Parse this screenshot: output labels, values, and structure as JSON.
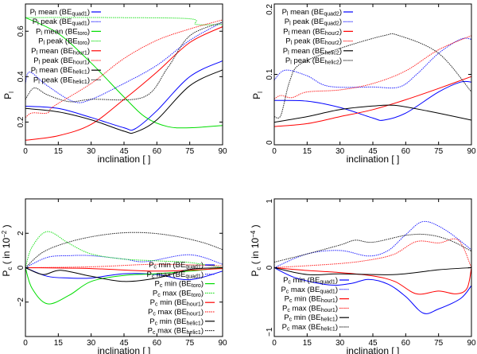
{
  "chart_data": [
    {
      "type": "line",
      "xlabel": "inclination [ ]",
      "ylabel": {
        "sym": "P",
        "sub": "l",
        "rest": ""
      },
      "xlim": [
        0,
        90
      ],
      "ylim": [
        0.1,
        0.72
      ],
      "xticks": [
        0,
        15,
        30,
        45,
        60,
        75,
        90
      ],
      "yticks": [
        0.2,
        0.4,
        0.6
      ],
      "ytick_labels": [
        "0.2",
        "0.4",
        "0.6"
      ],
      "legend_position": "top-left",
      "series": [
        {
          "name": "Pl mean (BEquad1)",
          "sym_sub": "l",
          "stat": "mean",
          "be_sub": "quad1",
          "color": "#0000ff",
          "dashed": false,
          "x": [
            0,
            15,
            30,
            45,
            50,
            60,
            75,
            90
          ],
          "y": [
            0.27,
            0.26,
            0.22,
            0.175,
            0.17,
            0.25,
            0.4,
            0.47
          ]
        },
        {
          "name": "Pl peak (BEquad1)",
          "sym_sub": "l",
          "stat": "peak",
          "be_sub": "quad1",
          "color": "#0000ff",
          "dashed": true,
          "x": [
            0,
            2,
            10,
            22,
            30,
            45,
            60,
            75,
            90
          ],
          "y": [
            0.37,
            0.42,
            0.36,
            0.29,
            0.3,
            0.37,
            0.45,
            0.56,
            0.64
          ]
        },
        {
          "name": "Pl mean (BEtoro)",
          "sym_sub": "l",
          "stat": "mean",
          "be_sub": "toro",
          "color": "#00dd00",
          "dashed": false,
          "x": [
            0,
            15,
            30,
            45,
            55,
            65,
            75,
            90
          ],
          "y": [
            0.66,
            0.59,
            0.46,
            0.31,
            0.22,
            0.18,
            0.175,
            0.185
          ]
        },
        {
          "name": "Pl peak (BEtoro)",
          "sym_sub": "l",
          "stat": "peak",
          "be_sub": "toro",
          "color": "#00dd00",
          "dashed": true,
          "x": [
            0,
            40,
            75,
            78,
            90
          ],
          "y": [
            0.66,
            0.66,
            0.655,
            0.63,
            0.63
          ]
        },
        {
          "name": "Pl mean (BEhour1)",
          "sym_sub": "l",
          "stat": "mean",
          "be_sub": "hour1",
          "color": "#ff0000",
          "dashed": false,
          "x": [
            0,
            15,
            30,
            45,
            60,
            75,
            90
          ],
          "y": [
            0.12,
            0.14,
            0.19,
            0.3,
            0.42,
            0.55,
            0.62
          ]
        },
        {
          "name": "Pl peak (BEhour1)",
          "sym_sub": "l",
          "stat": "peak",
          "be_sub": "hour1",
          "color": "#ff0000",
          "dashed": true,
          "x": [
            0,
            3,
            10,
            13,
            30,
            45,
            60,
            75,
            90
          ],
          "y": [
            0.22,
            0.24,
            0.24,
            0.27,
            0.37,
            0.48,
            0.56,
            0.61,
            0.65
          ]
        },
        {
          "name": "Pl mean (BEhelic1)",
          "sym_sub": "l",
          "stat": "mean",
          "be_sub": "helic1",
          "color": "#000000",
          "dashed": false,
          "x": [
            0,
            15,
            30,
            45,
            50,
            60,
            75,
            90
          ],
          "y": [
            0.26,
            0.245,
            0.21,
            0.16,
            0.155,
            0.21,
            0.36,
            0.43
          ]
        },
        {
          "name": "Pl peak (BEhelic1)",
          "sym_sub": "l",
          "stat": "peak",
          "be_sub": "helic1",
          "color": "#000000",
          "dashed": true,
          "x": [
            0,
            4,
            10,
            20,
            30,
            54,
            65,
            75,
            90
          ],
          "y": [
            0.3,
            0.35,
            0.32,
            0.29,
            0.3,
            0.31,
            0.44,
            0.58,
            0.64
          ]
        }
      ]
    },
    {
      "type": "line",
      "xlabel": "inclination [ ]",
      "ylabel": {
        "sym": "P",
        "sub": "l",
        "rest": ""
      },
      "xlim": [
        0,
        90
      ],
      "ylim": [
        0,
        0.2
      ],
      "xticks": [
        0,
        15,
        30,
        45,
        60,
        75,
        90
      ],
      "yticks": [
        0,
        0.1,
        0.2
      ],
      "ytick_labels": [
        "0",
        "0.1",
        "0.2"
      ],
      "legend_position": "top-left",
      "series": [
        {
          "name": "Pl mean (BEquad2)",
          "sym_sub": "l",
          "stat": "mean",
          "be_sub": "quad2",
          "color": "#0000ff",
          "dashed": false,
          "x": [
            0,
            15,
            30,
            45,
            50,
            60,
            75,
            85,
            90
          ],
          "y": [
            0.063,
            0.062,
            0.053,
            0.038,
            0.035,
            0.045,
            0.075,
            0.089,
            0.089
          ]
        },
        {
          "name": "Pl peak (BEquad2)",
          "sym_sub": "l",
          "stat": "peak",
          "be_sub": "quad2",
          "color": "#0000ff",
          "dashed": true,
          "x": [
            0,
            5,
            15,
            25,
            45,
            57,
            65,
            75,
            85,
            90
          ],
          "y": [
            0.092,
            0.106,
            0.098,
            0.083,
            0.082,
            0.082,
            0.1,
            0.13,
            0.15,
            0.15
          ]
        },
        {
          "name": "Pl mean (BEhour2)",
          "sym_sub": "l",
          "stat": "mean",
          "be_sub": "hour2",
          "color": "#ff0000",
          "dashed": false,
          "x": [
            0,
            15,
            30,
            45,
            60,
            75,
            90
          ],
          "y": [
            0.026,
            0.03,
            0.04,
            0.05,
            0.064,
            0.08,
            0.097
          ]
        },
        {
          "name": "Pl peak (BEhour2)",
          "sym_sub": "l",
          "stat": "peak",
          "be_sub": "hour2",
          "color": "#ff0000",
          "dashed": true,
          "x": [
            0,
            3,
            8,
            15,
            30,
            45,
            60,
            75,
            90
          ],
          "y": [
            0.065,
            0.07,
            0.067,
            0.075,
            0.078,
            0.087,
            0.105,
            0.135,
            0.155
          ]
        },
        {
          "name": "Pl mean (BEhelic2)",
          "sym_sub": "l",
          "stat": "mean",
          "be_sub": "helic2",
          "color": "#000000",
          "dashed": false,
          "x": [
            0,
            15,
            30,
            45,
            55,
            70,
            90
          ],
          "y": [
            0.032,
            0.04,
            0.05,
            0.055,
            0.056,
            0.048,
            0.035
          ]
        },
        {
          "name": "Pl peak (BEhelic2)",
          "sym_sub": "l",
          "stat": "peak",
          "be_sub": "helic2",
          "color": "#000000",
          "dashed": true,
          "x": [
            0,
            3,
            7,
            12,
            30,
            50,
            57,
            75,
            90
          ],
          "y": [
            0.04,
            0.042,
            0.09,
            0.115,
            0.137,
            0.155,
            0.155,
            0.13,
            0.075
          ]
        }
      ]
    },
    {
      "type": "line",
      "xlabel": "inclination [ ]",
      "ylabel": {
        "sym": "P",
        "sub": "c",
        "rest": " ( in 10",
        "sup": "−2",
        "close": " )"
      },
      "xlim": [
        0,
        90
      ],
      "ylim": [
        -4,
        4
      ],
      "xticks": [
        0,
        15,
        30,
        45,
        60,
        75,
        90
      ],
      "yticks": [
        -2,
        0,
        2
      ],
      "ytick_labels": [
        "−2",
        "0",
        "2"
      ],
      "legend_position": "bottom-right",
      "series": [
        {
          "name": "Pc min (BEquad1)",
          "sym_sub": "c",
          "stat": "min",
          "be_sub": "quad1",
          "color": "#0000ff",
          "dashed": false,
          "x": [
            0,
            10,
            20,
            30,
            45,
            60,
            75,
            90
          ],
          "y": [
            0,
            -0.5,
            -0.6,
            -0.6,
            -0.35,
            -0.4,
            -0.7,
            -0.2
          ]
        },
        {
          "name": "Pc max (BEquad1)",
          "sym_sub": "c",
          "stat": "max",
          "be_sub": "quad1",
          "color": "#0000ff",
          "dashed": true,
          "x": [
            0,
            10,
            20,
            30,
            45,
            55,
            75,
            90
          ],
          "y": [
            0,
            0.6,
            0.7,
            0.7,
            0.5,
            0.35,
            0.75,
            0.2
          ]
        },
        {
          "name": "Pc min (BEtoro)",
          "sym_sub": "c",
          "stat": "min",
          "be_sub": "toro",
          "color": "#00dd00",
          "dashed": false,
          "x": [
            0,
            3,
            10,
            20,
            30,
            45,
            60,
            75,
            90
          ],
          "y": [
            0,
            -1.2,
            -2.1,
            -1.6,
            -0.8,
            -0.45,
            -0.35,
            -0.2,
            0
          ]
        },
        {
          "name": "Pc max (BEtoro)",
          "sym_sub": "c",
          "stat": "max",
          "be_sub": "toro",
          "color": "#00dd00",
          "dashed": true,
          "x": [
            0,
            3,
            10,
            20,
            30,
            45,
            60,
            75,
            90
          ],
          "y": [
            0,
            1.2,
            2.1,
            1.4,
            0.8,
            0.5,
            0.4,
            0.3,
            0
          ]
        },
        {
          "name": "Pc min (BEhour1)",
          "sym_sub": "c",
          "stat": "min",
          "be_sub": "hour1",
          "color": "#ff0000",
          "dashed": false,
          "x": [
            0,
            30,
            60,
            90
          ],
          "y": [
            0,
            -0.05,
            -0.2,
            -0.05
          ]
        },
        {
          "name": "Pc max (BEhour1)",
          "sym_sub": "c",
          "stat": "max",
          "be_sub": "hour1",
          "color": "#ff0000",
          "dashed": true,
          "x": [
            0,
            30,
            60,
            90
          ],
          "y": [
            0,
            0.05,
            0.2,
            0.1
          ]
        },
        {
          "name": "Pc min (BEhelic1)",
          "sym_sub": "c",
          "stat": "min",
          "be_sub": "helic1",
          "color": "#000000",
          "dashed": false,
          "x": [
            0,
            8,
            16,
            30,
            45,
            60,
            75,
            90
          ],
          "y": [
            0,
            -0.4,
            -0.15,
            -0.5,
            -0.8,
            -0.6,
            -0.1,
            0
          ]
        },
        {
          "name": "Pc max (BEhelic1)",
          "sym_sub": "c",
          "stat": "max",
          "be_sub": "helic1",
          "color": "#000000",
          "dashed": true,
          "x": [
            0,
            8,
            20,
            35,
            50,
            65,
            80,
            90
          ],
          "y": [
            0,
            0.9,
            1.5,
            1.9,
            2.05,
            1.9,
            1.5,
            1.05
          ]
        }
      ]
    },
    {
      "type": "line",
      "xlabel": "inclination [ ]",
      "ylabel": {
        "sym": "P",
        "sub": "c",
        "rest": " ( in 10",
        "sup": "−4",
        "close": " )"
      },
      "xlim": [
        0,
        90
      ],
      "ylim": [
        -1,
        1
      ],
      "xticks": [
        0,
        15,
        30,
        45,
        60,
        75,
        90
      ],
      "yticks": [
        -1,
        0,
        1
      ],
      "ytick_labels": [
        "−1",
        "0",
        "1"
      ],
      "legend_position": "bottom-left",
      "series": [
        {
          "name": "Pc min (BEquad1)",
          "sym_sub": "c",
          "stat": "min",
          "be_sub": "quad1",
          "color": "#0000ff",
          "dashed": false,
          "x": [
            0,
            10,
            25,
            35,
            43,
            52,
            60,
            68,
            75,
            85,
            90
          ],
          "y": [
            0,
            -0.15,
            -0.25,
            -0.23,
            -0.17,
            -0.24,
            -0.42,
            -0.66,
            -0.6,
            -0.45,
            -0.26
          ]
        },
        {
          "name": "Pc max (BEquad1)",
          "sym_sub": "c",
          "stat": "max",
          "be_sub": "quad1",
          "color": "#0000ff",
          "dashed": true,
          "x": [
            0,
            15,
            30,
            43,
            52,
            60,
            68,
            78,
            90
          ],
          "y": [
            0,
            0.2,
            0.25,
            0.17,
            0.25,
            0.48,
            0.67,
            0.55,
            0.26
          ]
        },
        {
          "name": "Pc min (BEhour1)",
          "sym_sub": "c",
          "stat": "min",
          "be_sub": "hour1",
          "color": "#ff0000",
          "dashed": false,
          "x": [
            0,
            15,
            30,
            45,
            55,
            65,
            75,
            83,
            88,
            90
          ],
          "y": [
            0,
            -0.04,
            -0.07,
            -0.12,
            -0.2,
            -0.38,
            -0.34,
            -0.38,
            -0.3,
            0
          ]
        },
        {
          "name": "Pc max (BEhour1)",
          "sym_sub": "c",
          "stat": "max",
          "be_sub": "hour1",
          "color": "#ff0000",
          "dashed": true,
          "x": [
            0,
            30,
            45,
            55,
            65,
            75,
            84,
            90
          ],
          "y": [
            0,
            0.06,
            0.12,
            0.2,
            0.38,
            0.36,
            0.4,
            0
          ]
        },
        {
          "name": "Pc min (BEhelic1)",
          "sym_sub": "c",
          "stat": "min",
          "be_sub": "helic1",
          "color": "#000000",
          "dashed": false,
          "x": [
            0,
            15,
            30,
            55,
            75,
            90
          ],
          "y": [
            0,
            -0.1,
            -0.09,
            -0.1,
            -0.03,
            0
          ]
        },
        {
          "name": "Pc max (BEhelic1)",
          "sym_sub": "c",
          "stat": "max",
          "be_sub": "helic1",
          "color": "#000000",
          "dashed": true,
          "x": [
            0,
            15,
            30,
            37,
            45,
            60,
            70,
            80,
            90
          ],
          "y": [
            0.08,
            0.2,
            0.33,
            0.4,
            0.37,
            0.47,
            0.48,
            0.4,
            0.24
          ]
        }
      ]
    }
  ]
}
